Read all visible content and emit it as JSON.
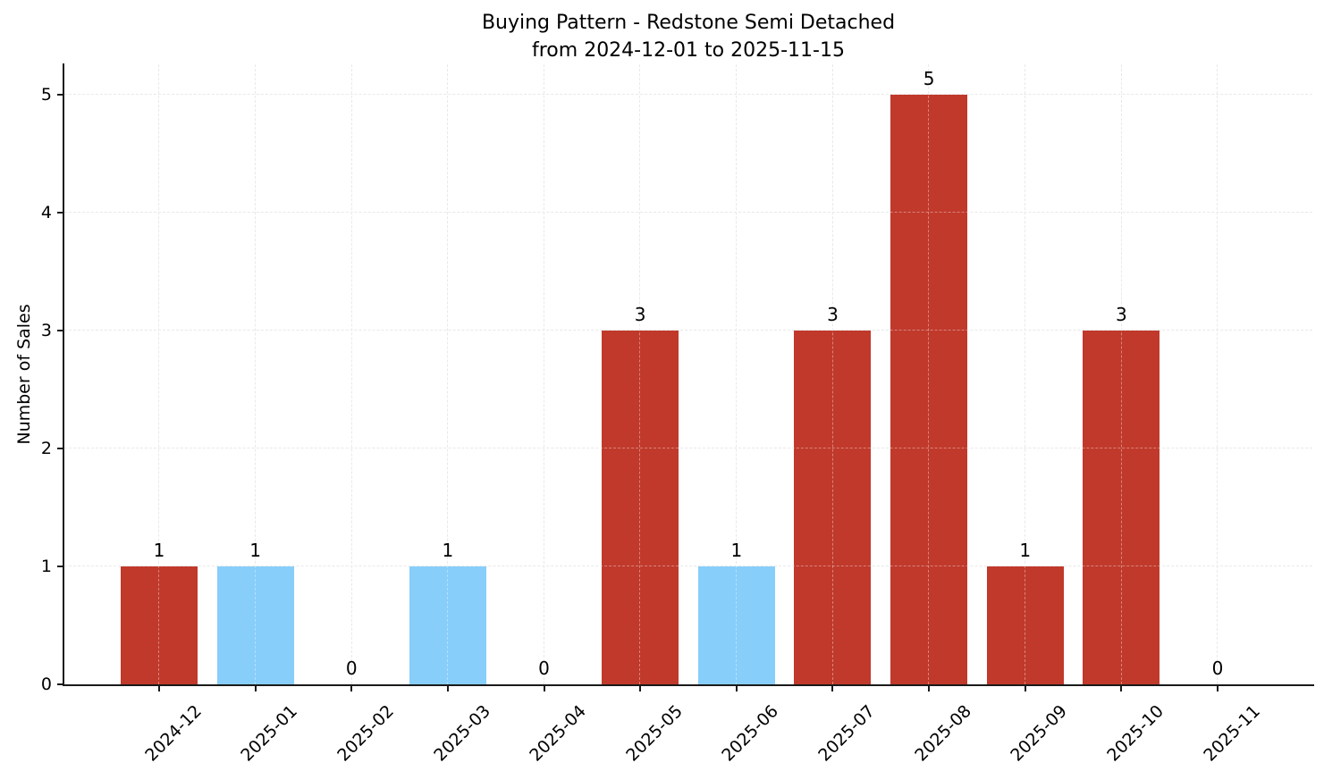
{
  "chart_data": {
    "type": "bar",
    "title": "Buying Pattern - Redstone Semi Detached",
    "subtitle": "from 2024-12-01 to 2025-11-15",
    "xlabel": "",
    "ylabel": "Number of Sales",
    "categories": [
      "2024-12",
      "2025-01",
      "2025-02",
      "2025-03",
      "2025-04",
      "2025-05",
      "2025-06",
      "2025-07",
      "2025-08",
      "2025-09",
      "2025-10",
      "2025-11"
    ],
    "values": [
      1,
      1,
      0,
      1,
      0,
      3,
      1,
      3,
      5,
      1,
      3,
      0
    ],
    "value_labels": [
      "1",
      "1",
      "0",
      "1",
      "0",
      "3",
      "1",
      "3",
      "5",
      "1",
      "3",
      "0"
    ],
    "bar_colors": [
      "#c0392b",
      "#87cefa",
      "#c0392b",
      "#87cefa",
      "#c0392b",
      "#c0392b",
      "#87cefa",
      "#c0392b",
      "#c0392b",
      "#c0392b",
      "#c0392b",
      "#c0392b"
    ],
    "yticks": [
      0,
      1,
      2,
      3,
      4,
      5
    ],
    "ylim": [
      0,
      5.25
    ],
    "grid": "dashed, both axes",
    "legend_position": "none",
    "x_tick_rotation_deg": 45
  },
  "colors": {
    "bar_red": "#c0392b",
    "bar_blue": "#87cefa",
    "grid": "#dcdcdc",
    "axis": "#1a1a1a",
    "text": "#000000",
    "background": "#ffffff"
  }
}
